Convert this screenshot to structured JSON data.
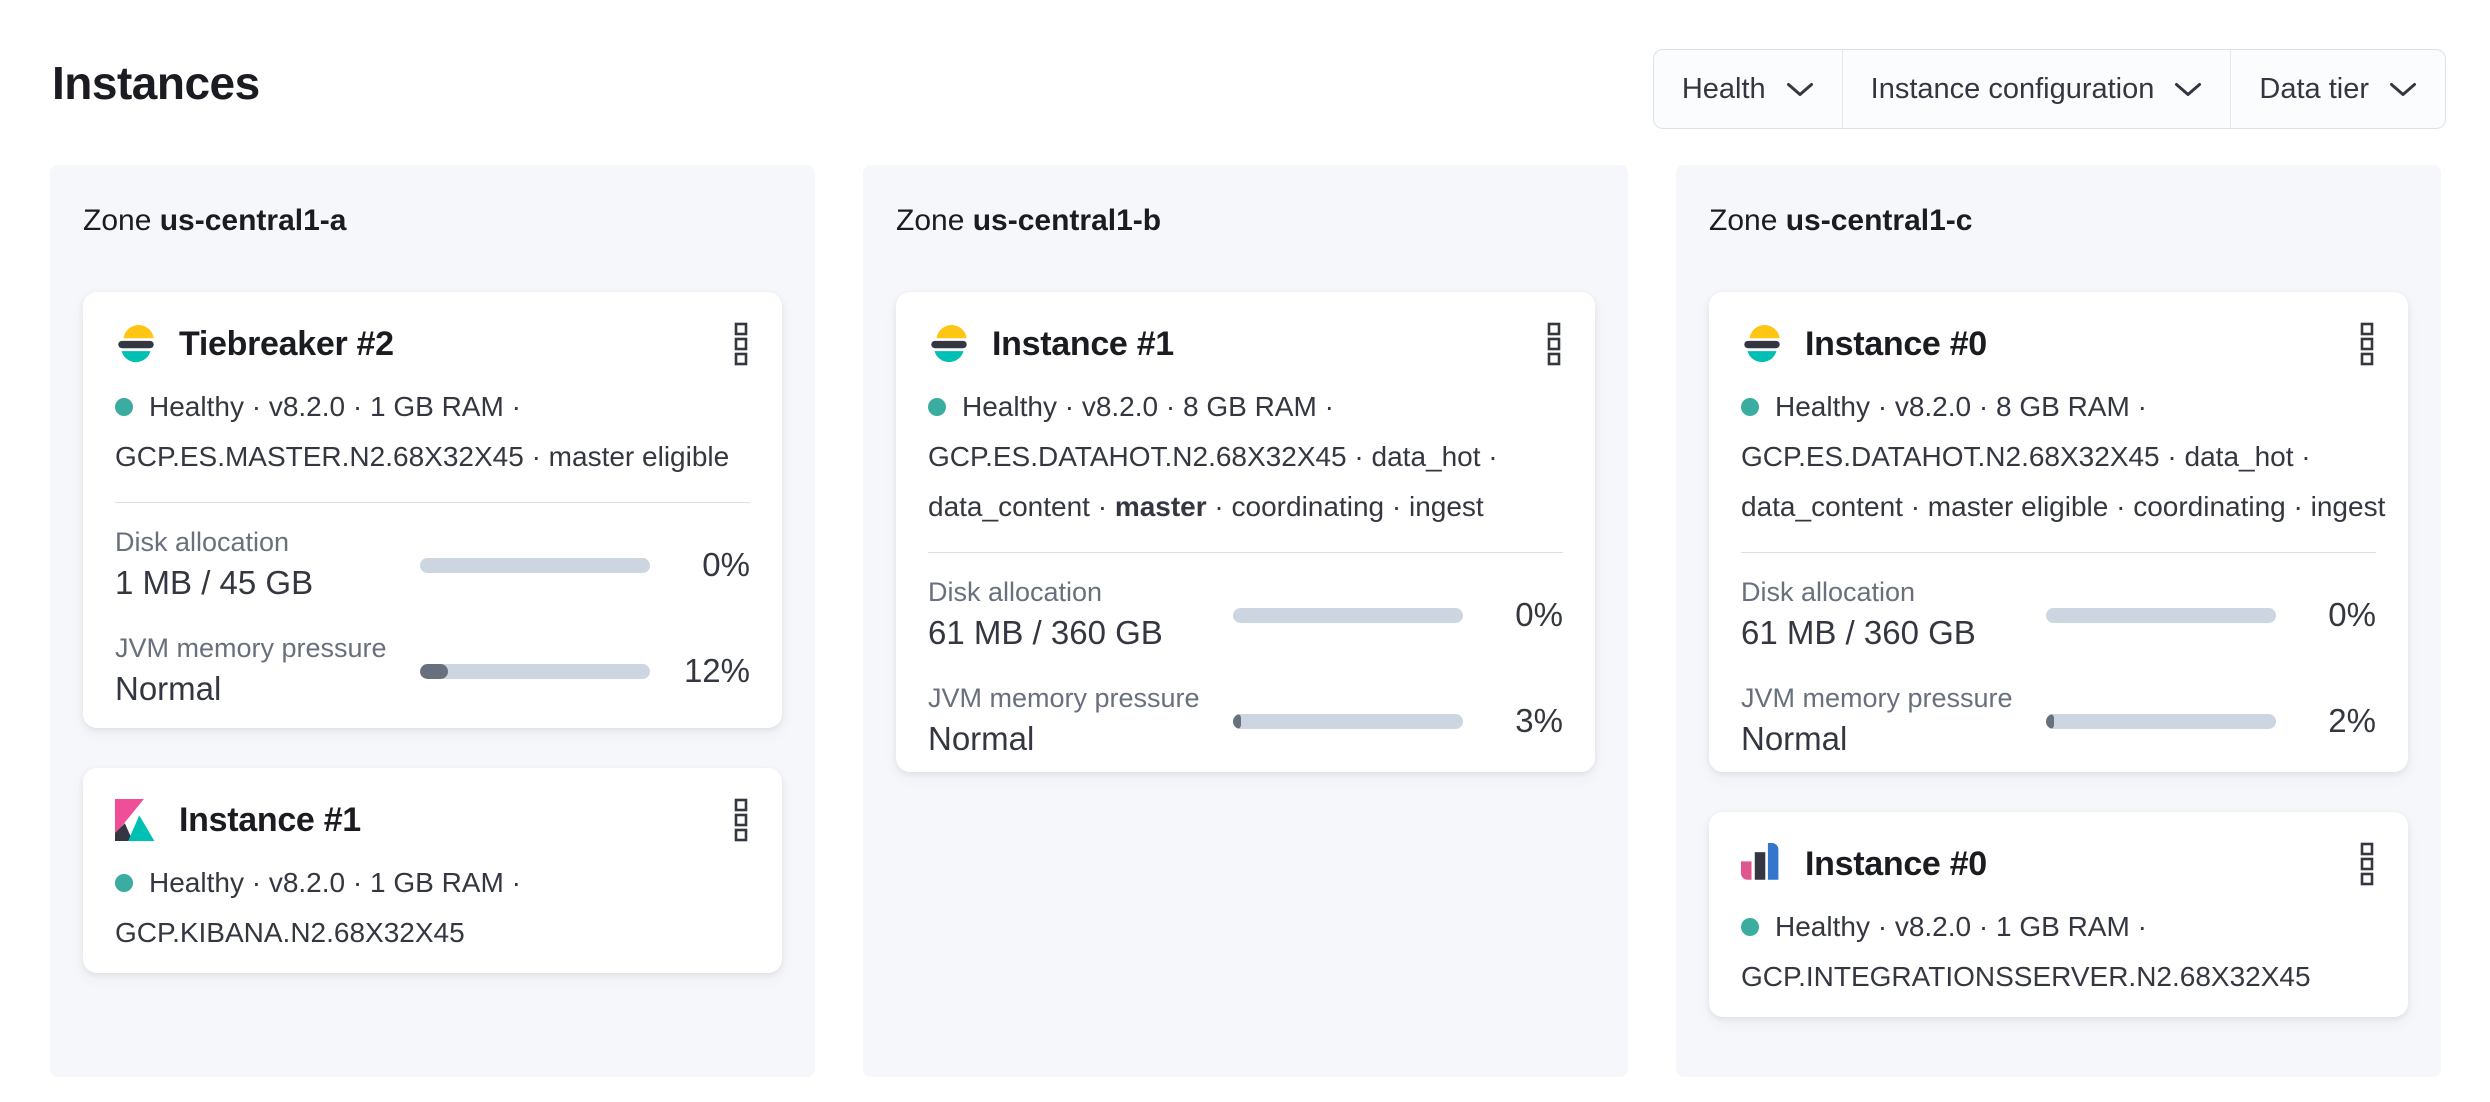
{
  "header": {
    "title": "Instances"
  },
  "filters": [
    {
      "label": "Health",
      "icon": "chevron-down"
    },
    {
      "label": "Instance configuration",
      "icon": "chevron-down"
    },
    {
      "label": "Data tier",
      "icon": "chevron-down"
    }
  ],
  "colors": {
    "health_dot": "#3aada0",
    "progress_track": "#cdd5e1",
    "progress_fill": "#69707d",
    "zone_panel_bg": "#f6f7fa",
    "elasticsearch_yellow": "#fec514",
    "elasticsearch_dark": "#343741",
    "elasticsearch_teal": "#00bfb3",
    "kibana_pink": "#f04e98",
    "integrations_pink": "#e0568f",
    "integrations_blue": "#3377cc"
  },
  "zones": [
    {
      "label_prefix": "Zone",
      "name": "us-central1-a",
      "instances": [
        {
          "icon": "elasticsearch-logo",
          "menu_icon": "boxes-vertical",
          "title": "Tiebreaker #2",
          "line1": "Healthy · v8.2.0 · 1 GB RAM ·",
          "line2": "GCP.ES.MASTER.N2.68X32X45 · master eligible",
          "metrics": {
            "disk": {
              "label": "Disk allocation",
              "value": "1 MB / 45 GB",
              "percent_label": "0%",
              "percent": 0
            },
            "jvm": {
              "label": "JVM memory pressure",
              "value": "Normal",
              "percent_label": "12%",
              "percent": 12
            }
          }
        },
        {
          "icon": "kibana-logo",
          "menu_icon": "boxes-vertical",
          "title": "Instance #1",
          "line1": "Healthy · v8.2.0 · 1 GB RAM ·",
          "line2": "GCP.KIBANA.N2.68X32X45"
        }
      ]
    },
    {
      "label_prefix": "Zone",
      "name": "us-central1-b",
      "instances": [
        {
          "icon": "elasticsearch-logo",
          "menu_icon": "boxes-vertical",
          "title": "Instance #1",
          "line1": "Healthy · v8.2.0 · 8 GB RAM ·",
          "line2": "GCP.ES.DATAHOT.N2.68X32X45 · data_hot ·",
          "line3_pre": "data_content · ",
          "line3_bold": "master",
          "line3_post": " · coordinating · ingest",
          "metrics": {
            "disk": {
              "label": "Disk allocation",
              "value": "61 MB / 360 GB",
              "percent_label": "0%",
              "percent": 0
            },
            "jvm": {
              "label": "JVM memory pressure",
              "value": "Normal",
              "percent_label": "3%",
              "percent": 3
            }
          }
        }
      ]
    },
    {
      "label_prefix": "Zone",
      "name": "us-central1-c",
      "instances": [
        {
          "icon": "elasticsearch-logo",
          "menu_icon": "boxes-vertical",
          "title": "Instance #0",
          "line1": "Healthy · v8.2.0 · 8 GB RAM ·",
          "line2": "GCP.ES.DATAHOT.N2.68X32X45 · data_hot ·",
          "line3": "data_content · master eligible · coordinating · ingest",
          "metrics": {
            "disk": {
              "label": "Disk allocation",
              "value": "61 MB / 360 GB",
              "percent_label": "0%",
              "percent": 0
            },
            "jvm": {
              "label": "JVM memory pressure",
              "value": "Normal",
              "percent_label": "2%",
              "percent": 2
            }
          }
        },
        {
          "icon": "integrations-server-logo",
          "menu_icon": "boxes-vertical",
          "title": "Instance #0",
          "line1": "Healthy · v8.2.0 · 1 GB RAM ·",
          "line2": "GCP.INTEGRATIONSSERVER.N2.68X32X45"
        }
      ]
    }
  ]
}
